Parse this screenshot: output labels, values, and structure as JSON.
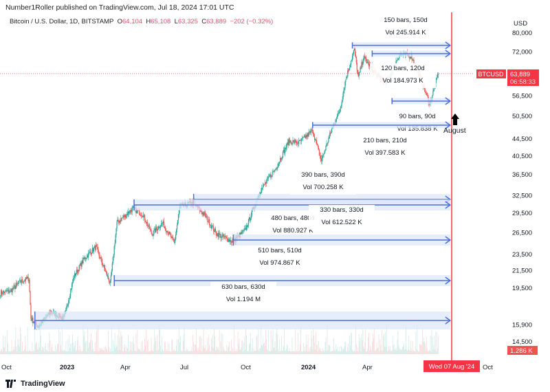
{
  "header": {
    "published": "Number1Roller published on TradingView.com, Jul 18, 2024 17:01 UTC",
    "symbol": "Bitcoin / U.S. Dollar, 1D, BITSTAMP",
    "o_label": "O",
    "o": "64,104",
    "h_label": "H",
    "h": "65,108",
    "l_label": "L",
    "l": "63,325",
    "c_label": "C",
    "c": "63,889",
    "change": "−202 (−0.32%)"
  },
  "footer": {
    "brand": "TradingView",
    "logo_icon": "tradingview-logo-icon"
  },
  "colors": {
    "up": "#26a69a",
    "down": "#ef5350",
    "range": "#4a6fd8",
    "range_fill": "#dce7fb",
    "marker": "#f23645"
  },
  "chart_data": {
    "type": "candlestick",
    "title": "",
    "currency": "USD",
    "y_scale": "log",
    "ylim": [
      14000,
      86000
    ],
    "y_ticks": [
      "80,000",
      "72,000",
      "56,500",
      "50,500",
      "44,500",
      "40,500",
      "36,500",
      "32,500",
      "29,500",
      "26,500",
      "23,500",
      "21,500",
      "19,500",
      "15,900",
      "14,500"
    ],
    "x_ticks": [
      "Oct",
      "2023",
      "Apr",
      "Jul",
      "Oct",
      "2024",
      "Apr",
      "Oct"
    ],
    "last_price": {
      "symbol": "BTCUSD",
      "price": "63,889",
      "countdown": "06:58:33"
    },
    "volume_label": "1.286 K",
    "cursor_date": "Wed 07 Aug '24",
    "approx_closes": [
      [
        "2022-09-25",
        19000
      ],
      [
        "2022-10-10",
        19200
      ],
      [
        "2022-10-25",
        20200
      ],
      [
        "2022-11-07",
        20600
      ],
      [
        "2022-11-10",
        16500
      ],
      [
        "2022-11-21",
        15800
      ],
      [
        "2022-12-10",
        17100
      ],
      [
        "2022-12-30",
        16500
      ],
      [
        "2023-01-14",
        20800
      ],
      [
        "2023-01-30",
        23000
      ],
      [
        "2023-02-16",
        24500
      ],
      [
        "2023-03-10",
        20000
      ],
      [
        "2023-03-20",
        28000
      ],
      [
        "2023-04-13",
        30300
      ],
      [
        "2023-04-28",
        29300
      ],
      [
        "2023-05-12",
        26300
      ],
      [
        "2023-05-28",
        28000
      ],
      [
        "2023-06-15",
        25000
      ],
      [
        "2023-06-23",
        30600
      ],
      [
        "2023-07-13",
        31300
      ],
      [
        "2023-07-31",
        29200
      ],
      [
        "2023-08-17",
        26400
      ],
      [
        "2023-09-11",
        25200
      ],
      [
        "2023-09-30",
        26900
      ],
      [
        "2023-10-23",
        33500
      ],
      [
        "2023-11-15",
        37800
      ],
      [
        "2023-12-05",
        44000
      ],
      [
        "2023-12-20",
        43600
      ],
      [
        "2024-01-10",
        46600
      ],
      [
        "2024-01-23",
        39500
      ],
      [
        "2024-02-10",
        48000
      ],
      [
        "2024-02-20",
        52000
      ],
      [
        "2024-02-29",
        62000
      ],
      [
        "2024-03-13",
        73000
      ],
      [
        "2024-03-19",
        62500
      ],
      [
        "2024-03-27",
        70000
      ],
      [
        "2024-04-13",
        64000
      ],
      [
        "2024-04-30",
        60500
      ],
      [
        "2024-05-20",
        71000
      ],
      [
        "2024-06-07",
        70500
      ],
      [
        "2024-06-24",
        60500
      ],
      [
        "2024-07-05",
        54000
      ],
      [
        "2024-07-18",
        63889
      ]
    ],
    "date_ranges": [
      {
        "bars": "150 bars, 150d",
        "vol": "Vol 245.914 K",
        "start": "2024-03-10",
        "end": "2024-08-07"
      },
      {
        "bars": "120 bars, 120d",
        "vol": "Vol 184.973 K",
        "start": "2024-04-09",
        "end": "2024-08-07"
      },
      {
        "bars": "90 bars, 90d",
        "vol": "Vol 135.838 K",
        "start": "2024-05-09",
        "end": "2024-08-07"
      },
      {
        "bars": "210 bars, 210d",
        "vol": "Vol 397.583 K",
        "start": "2024-01-10",
        "end": "2024-08-07"
      },
      {
        "bars": "390 bars, 390d",
        "vol": "Vol 700.258 K",
        "start": "2023-07-14",
        "end": "2024-08-07"
      },
      {
        "bars": "480 bars, 480d",
        "vol": "Vol 880.927 K",
        "start": "2023-04-15",
        "end": "2024-08-07"
      },
      {
        "bars": "330 bars, 330d",
        "vol": "Vol 612.522 K",
        "start": "2023-09-12",
        "end": "2024-08-07"
      },
      {
        "bars": "510 bars, 510d",
        "vol": "Vol 974.867 K",
        "start": "2023-03-16",
        "end": "2024-08-07"
      },
      {
        "bars": "630 bars, 630d",
        "vol": "Vol 1.194 M",
        "start": "2022-11-16",
        "end": "2024-08-07"
      }
    ],
    "annotation": "August"
  }
}
